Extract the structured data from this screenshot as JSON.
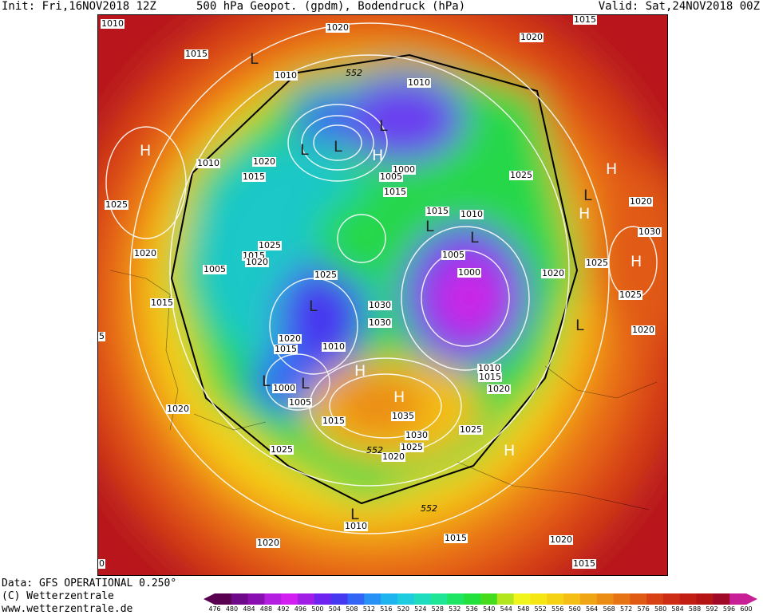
{
  "header": {
    "init": "Init: Fri,16NOV2018 12Z",
    "title": "500 hPa Geopot. (gpdm), Bodendruck (hPa)",
    "valid": "Valid: Sat,24NOV2018 00Z"
  },
  "credits": {
    "data": "Data: GFS OPERATIONAL 0.250°",
    "copyright": "(C) Wetterzentrale",
    "url": "www.wetterzentrale.de"
  },
  "legend": {
    "ticks": [
      "476",
      "480",
      "484",
      "488",
      "492",
      "496",
      "500",
      "504",
      "508",
      "512",
      "516",
      "520",
      "524",
      "528",
      "532",
      "536",
      "540",
      "544",
      "548",
      "552",
      "556",
      "560",
      "564",
      "568",
      "572",
      "576",
      "580",
      "584",
      "588",
      "592",
      "596",
      "600"
    ],
    "colors": [
      "#5a0050",
      "#6e0a8a",
      "#8a0fb0",
      "#b41ee0",
      "#d21ef0",
      "#a01ee6",
      "#6e23f0",
      "#4637f0",
      "#3264f5",
      "#2891f5",
      "#1eb4f0",
      "#1ecce0",
      "#1edcbe",
      "#1ee696",
      "#1ee664",
      "#23e13c",
      "#46dc1e",
      "#b4e61e",
      "#f0f51e",
      "#f5e614",
      "#f5d214",
      "#f5be14",
      "#f0a514",
      "#eb8c14",
      "#e67314",
      "#e15a14",
      "#d74114",
      "#cd2d14",
      "#c31e14",
      "#b41414",
      "#a00a28",
      "#c81e96"
    ]
  },
  "map": {
    "isobar_labels": [
      "1010",
      "1020",
      "1015",
      "1015",
      "1010",
      "1010",
      "1020",
      "1010",
      "1015",
      "1020",
      "1025",
      "1025",
      "1000",
      "1005",
      "1015",
      "1015",
      "1010",
      "1025",
      "1020",
      "1015",
      "1025",
      "1020",
      "1005",
      "1015",
      "1005",
      "1000",
      "1020",
      "1030",
      "1025",
      "1025",
      "1030",
      "1015",
      "1020",
      "1010",
      "1020",
      "1005",
      "1000",
      "1010",
      "1015",
      "1015",
      "1020",
      "1020",
      "1035",
      "1030",
      "1025",
      "1020",
      "1025",
      "1010",
      "1020",
      "1015",
      "1020",
      "1015",
      "1025",
      "1030",
      "1020",
      "5",
      "0"
    ],
    "geopotential_labels": [
      "552",
      "552",
      "552"
    ],
    "centers": [
      "L",
      "L",
      "H",
      "H",
      "L",
      "L",
      "H",
      "L",
      "H",
      "L",
      "H",
      "L",
      "L",
      "L",
      "H",
      "H",
      "H",
      "L",
      "L",
      "L"
    ]
  }
}
